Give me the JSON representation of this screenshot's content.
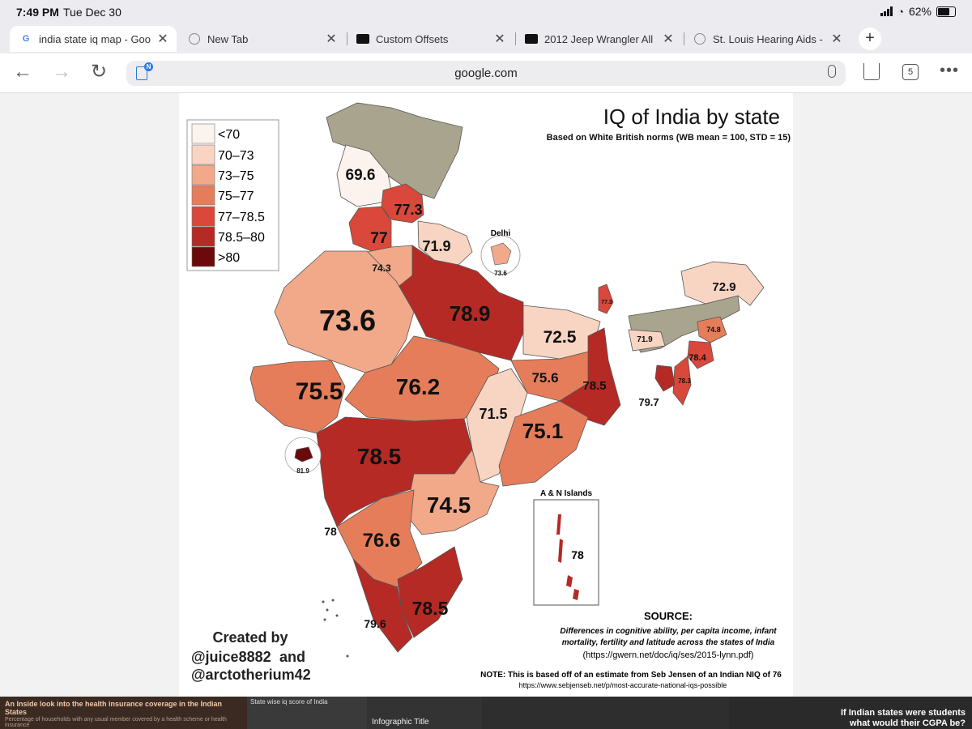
{
  "status": {
    "time": "7:49 PM",
    "date": "Tue Dec 30",
    "battery": "62%"
  },
  "tabs": [
    {
      "label": "india state iq map - Goo",
      "icon": "google-g-icon",
      "active": true
    },
    {
      "label": "New Tab",
      "icon": "globe-icon",
      "active": false
    },
    {
      "label": "Custom Offsets",
      "icon": "custom-offsets-icon",
      "active": false
    },
    {
      "label": "2012 Jeep Wrangler All",
      "icon": "custom-offsets-icon",
      "active": false
    },
    {
      "label": "St. Louis Hearing Aids -",
      "icon": "globe-icon",
      "active": false
    }
  ],
  "toolbar": {
    "url": "google.com",
    "tab_count": "5",
    "reader_badge": "N"
  },
  "map": {
    "title": "IQ of India by state",
    "subtitle": "Based on White British norms (WB mean = 100, STD = 15)",
    "legend": [
      {
        "label": "<70",
        "color": "#fdf3ee"
      },
      {
        "label": "70–73",
        "color": "#f8d5c3"
      },
      {
        "label": "73–75",
        "color": "#f1a98a"
      },
      {
        "label": "75–77",
        "color": "#e67d5a"
      },
      {
        "label": "77–78.5",
        "color": "#d9483a"
      },
      {
        "label": "78.5–80",
        "color": "#b52a25"
      },
      {
        "label": ">80",
        "color": "#6a0a0a"
      }
    ],
    "nodata_color": "#a8a48e",
    "state_values": {
      "jk": "69.6",
      "hp": "77.3",
      "pb": "77",
      "hr": "74.3",
      "uk": "71.9",
      "delhi": "73.6",
      "rj": "73.6",
      "up": "78.9",
      "ar": "72.9",
      "sk": "77.3",
      "bh": "72.5",
      "me": "71.9",
      "na": "74.8",
      "ma": "78.4",
      "mz": "78.3",
      "tr": "79.7",
      "gj": "75.5",
      "mp": "76.2",
      "jh": "75.6",
      "wb": "78.5",
      "ch": "71.5",
      "od": "75.1",
      "goa": "81.9",
      "mh": "78.5",
      "tg": "74.5",
      "ka": "76.6",
      "kl": "79.6",
      "tn": "78.5",
      "goa_side": "78",
      "an": "78"
    },
    "delhi_label": "Delhi",
    "an_label": "A & N Islands",
    "credit_line1": "Created by",
    "credit_line2": "@juice8882",
    "credit_and": "and",
    "credit_line3": "@arctotherium42",
    "source_title": "SOURCE:",
    "source_text1": "Differences in cognitive ability, per capita income, infant",
    "source_text2": "mortality, fertility and latitude across the states of India",
    "source_url": "(https://gwern.net/doc/iq/ses/2015-lynn.pdf)",
    "note": "NOTE: This is based off of an estimate from Seb Jensen of an Indian NIQ of 76",
    "note_url": "https://www.sebjenseb.net/p/most-accurate-national-iqs-possible"
  },
  "related": {
    "item1_title": "An Inside look into the health insurance coverage in the Indian States",
    "item1_sub": "Percentage of households with any usual member covered by a health scheme or health insurance",
    "item2_title": "State wise iq score of India",
    "item3_title": "Infographic Title",
    "item4_title1": "If Indian states were students",
    "item4_title2": "what would their CGPA be?"
  }
}
